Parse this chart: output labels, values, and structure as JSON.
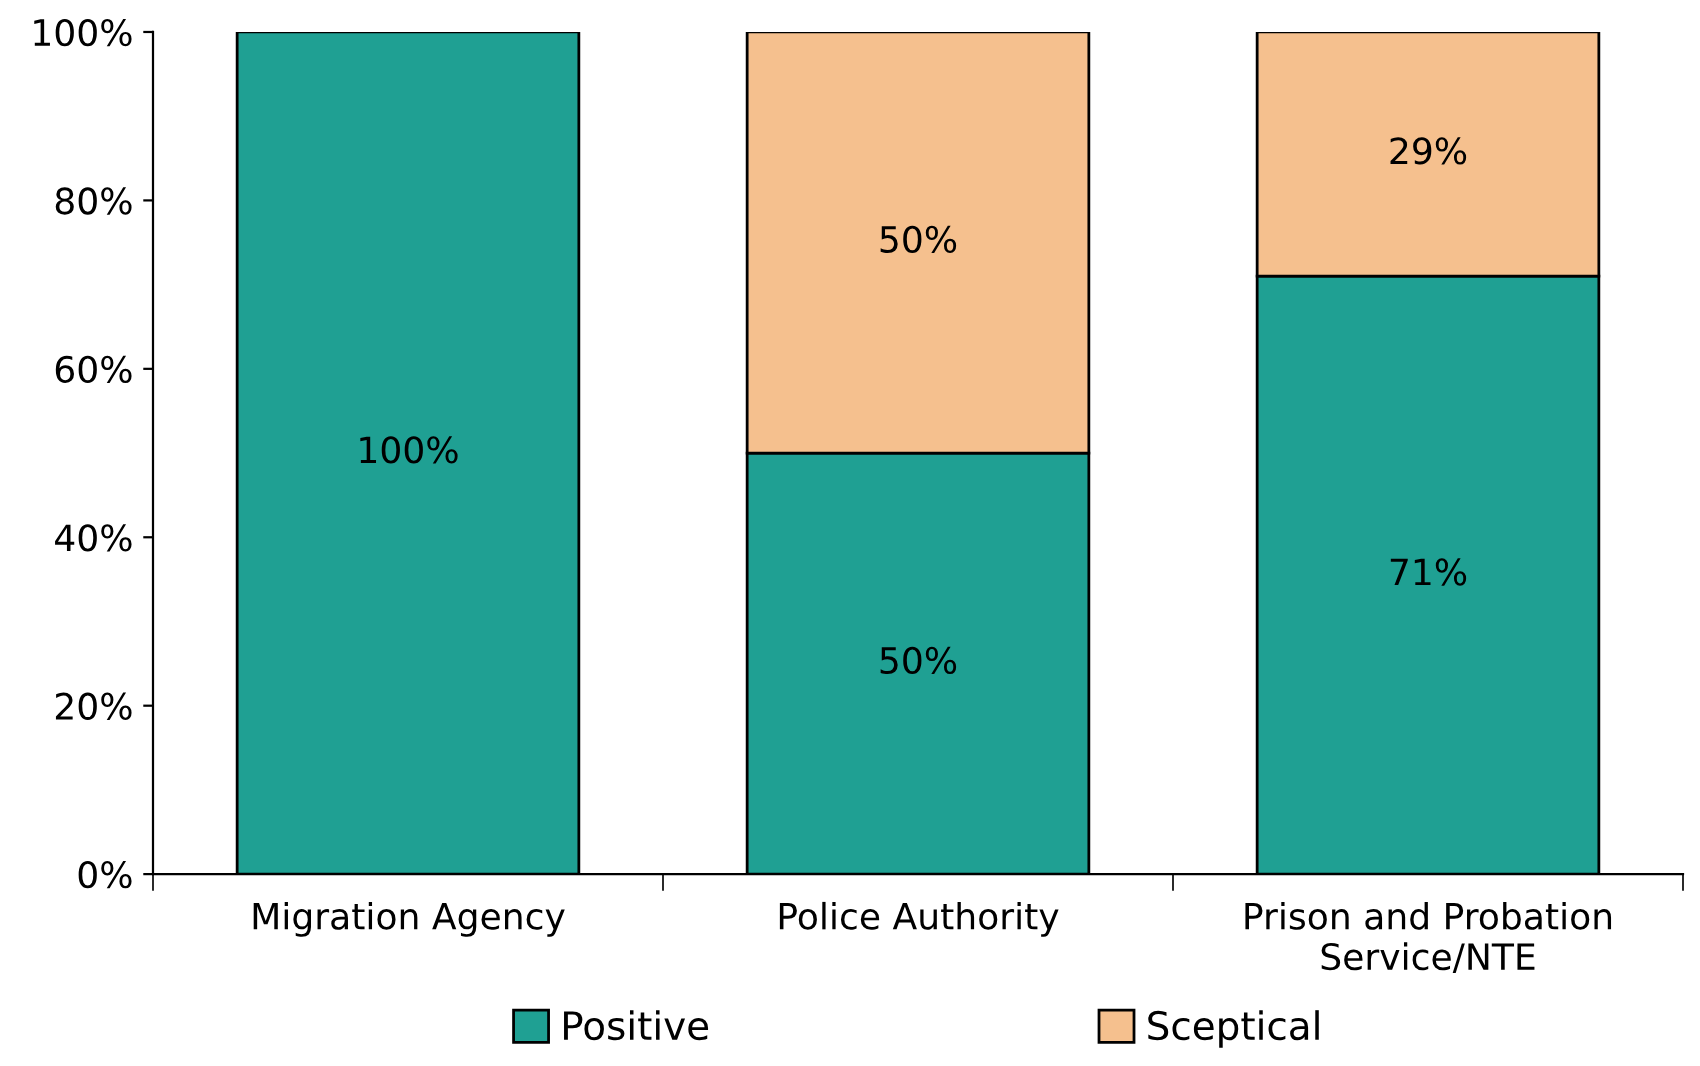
{
  "chart_data": {
    "type": "bar",
    "stacked": true,
    "categories": [
      "Migration Agency",
      "Police Authority",
      "Prison and Probation Service/NTE"
    ],
    "series": [
      {
        "name": "Positive",
        "color": "#1fa093",
        "values": [
          100,
          50,
          71
        ],
        "value_labels": [
          "100%",
          "50%",
          "71%"
        ]
      },
      {
        "name": "Sceptical",
        "color": "#f5c08e",
        "values": [
          null,
          50,
          29
        ],
        "value_labels": [
          null,
          "50%",
          "29%"
        ]
      }
    ],
    "ylim": [
      0,
      100
    ],
    "yticks": [
      {
        "value": 0,
        "label": "0%"
      },
      {
        "value": 20,
        "label": "20%"
      },
      {
        "value": 40,
        "label": "40%"
      },
      {
        "value": 60,
        "label": "60%"
      },
      {
        "value": 80,
        "label": "80%"
      },
      {
        "value": 100,
        "label": "100%"
      }
    ],
    "grid": false,
    "legend": "bottom"
  }
}
